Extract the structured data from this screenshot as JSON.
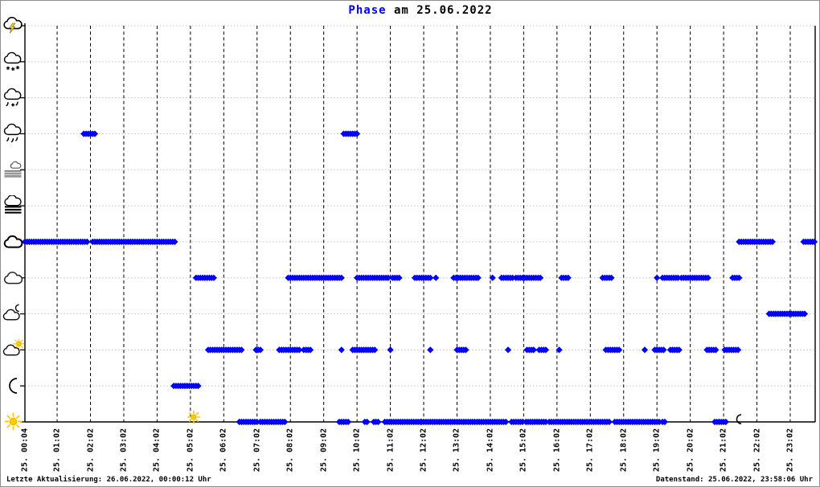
{
  "title": {
    "word": "Phase",
    "rest": " am 25.06.2022"
  },
  "footer": {
    "left": "Letzte Aktualisierung: 26.06.2022, 00:00:12 Uhr",
    "right": "Datenstand: 25.06.2022, 23:58:06 Uhr"
  },
  "colors": {
    "dot": "#0000ff",
    "title_highlight": "#0000ff",
    "text": "#000000",
    "h_grid": "#c4c4c4",
    "v_grid": "#000000",
    "axis": "#000000",
    "sun": "#ffcc00",
    "bolt": "#ffd400"
  },
  "chart_data": {
    "type": "scatter",
    "title": "Phase am 25.06.2022",
    "x_unit": "minutes since 00:00 on 25.06.2022",
    "point_interval_minutes": 4,
    "x_range_minutes": [
      4,
      1438
    ],
    "x_ticks": [
      {
        "label": "25. 00:04",
        "minutes": 4
      },
      {
        "label": "25. 01:02",
        "minutes": 62
      },
      {
        "label": "25. 02:02",
        "minutes": 122
      },
      {
        "label": "25. 03:02",
        "minutes": 182
      },
      {
        "label": "25. 04:02",
        "minutes": 242
      },
      {
        "label": "25. 05:02",
        "minutes": 302
      },
      {
        "label": "25. 06:02",
        "minutes": 362
      },
      {
        "label": "25. 07:02",
        "minutes": 422
      },
      {
        "label": "25. 08:02",
        "minutes": 482
      },
      {
        "label": "25. 09:02",
        "minutes": 542
      },
      {
        "label": "25. 10:02",
        "minutes": 602
      },
      {
        "label": "25. 11:02",
        "minutes": 662
      },
      {
        "label": "25. 12:02",
        "minutes": 722
      },
      {
        "label": "25. 13:02",
        "minutes": 782
      },
      {
        "label": "25. 14:02",
        "minutes": 842
      },
      {
        "label": "25. 15:02",
        "minutes": 902
      },
      {
        "label": "25. 16:02",
        "minutes": 962
      },
      {
        "label": "25. 17:02",
        "minutes": 1022
      },
      {
        "label": "25. 18:02",
        "minutes": 1082
      },
      {
        "label": "25. 19:02",
        "minutes": 1142
      },
      {
        "label": "25. 20:02",
        "minutes": 1202
      },
      {
        "label": "25. 21:02",
        "minutes": 1262
      },
      {
        "label": "25. 22:02",
        "minutes": 1322
      },
      {
        "label": "25. 23:02",
        "minutes": 1382
      }
    ],
    "y_axis_rows": [
      {
        "id": "thunderstorm",
        "icon": "thunderstorm-icon"
      },
      {
        "id": "snow",
        "icon": "snow-cloud-icon"
      },
      {
        "id": "sleet",
        "icon": "sleet-cloud-icon"
      },
      {
        "id": "rain",
        "icon": "rain-cloud-icon"
      },
      {
        "id": "mist",
        "icon": "mist-icon"
      },
      {
        "id": "fog",
        "icon": "fog-icon"
      },
      {
        "id": "overcast",
        "icon": "overcast-cloud-icon"
      },
      {
        "id": "cloudy",
        "icon": "cloud-icon"
      },
      {
        "id": "cloudy-night",
        "icon": "cloud-moon-icon"
      },
      {
        "id": "cloudy-day",
        "icon": "cloud-sun-icon"
      },
      {
        "id": "clear-night",
        "icon": "moon-icon"
      },
      {
        "id": "clear-day",
        "icon": "sun-icon"
      }
    ],
    "series": [
      {
        "row": "rain",
        "segments": [
          [
            110,
            130
          ],
          [
            578,
            604
          ]
        ]
      },
      {
        "row": "overcast",
        "segments": [
          [
            4,
            118
          ],
          [
            126,
            276
          ],
          [
            1290,
            1350
          ],
          [
            1406,
            1436
          ]
        ]
      },
      {
        "row": "cloudy",
        "segments": [
          [
            312,
            344
          ],
          [
            478,
            574
          ],
          [
            602,
            658
          ],
          [
            666,
            678
          ],
          [
            706,
            734
          ],
          [
            744,
            746
          ],
          [
            776,
            820
          ],
          [
            846,
            848
          ],
          [
            862,
            884
          ],
          [
            888,
            912
          ],
          [
            916,
            934
          ],
          [
            970,
            984
          ],
          [
            1044,
            1062
          ],
          [
            1142,
            1144
          ],
          [
            1152,
            1180
          ],
          [
            1186,
            1234
          ],
          [
            1278,
            1292
          ]
        ]
      },
      {
        "row": "cloudy-night",
        "segments": [
          [
            1344,
            1410
          ]
        ]
      },
      {
        "row": "cloudy-day",
        "segments": [
          [
            334,
            394
          ],
          [
            420,
            430
          ],
          [
            462,
            500
          ],
          [
            506,
            520
          ],
          [
            574,
            576
          ],
          [
            594,
            634
          ],
          [
            662,
            664
          ],
          [
            734,
            736
          ],
          [
            782,
            800
          ],
          [
            874,
            876
          ],
          [
            908,
            922
          ],
          [
            930,
            944
          ],
          [
            966,
            968
          ],
          [
            1050,
            1074
          ],
          [
            1120,
            1122
          ],
          [
            1138,
            1154
          ],
          [
            1166,
            1184
          ],
          [
            1232,
            1248
          ],
          [
            1264,
            1288
          ]
        ]
      },
      {
        "row": "clear-night",
        "segments": [
          [
            272,
            318
          ]
        ]
      },
      {
        "row": "clear-day",
        "segments": [
          [
            390,
            424
          ],
          [
            428,
            472
          ],
          [
            570,
            586
          ],
          [
            616,
            620
          ],
          [
            632,
            640
          ],
          [
            652,
            716
          ],
          [
            718,
            872
          ],
          [
            880,
            900
          ],
          [
            906,
            944
          ],
          [
            948,
            1058
          ],
          [
            1066,
            1146
          ],
          [
            1152,
            1158
          ],
          [
            1246,
            1266
          ]
        ]
      }
    ],
    "markers": [
      {
        "icon": "sunrise-sun-icon",
        "minutes": 308
      },
      {
        "icon": "sunset-moon-icon",
        "minutes": 1290
      }
    ],
    "grid": {
      "horizontal": "dotted",
      "vertical": "dashed"
    },
    "legend_position": "none"
  }
}
